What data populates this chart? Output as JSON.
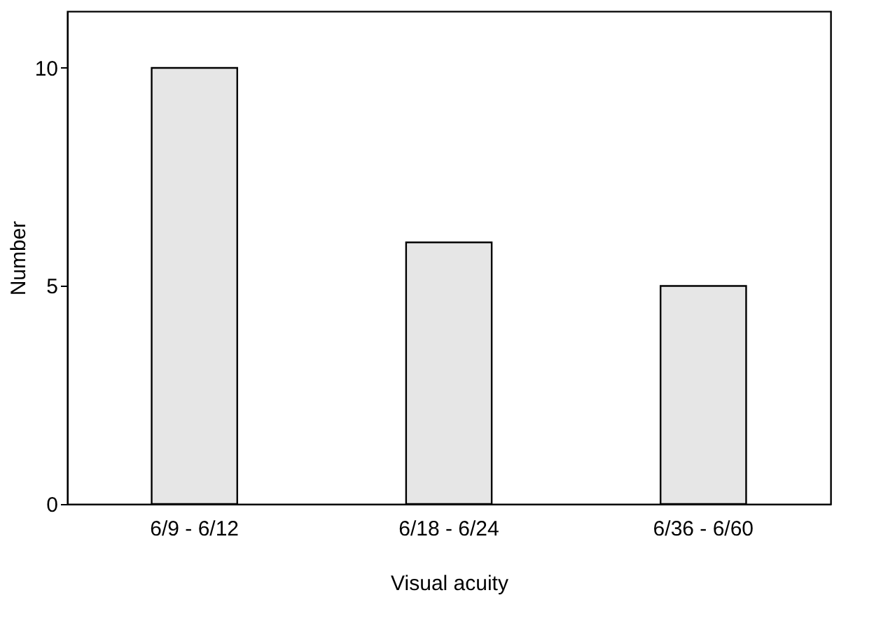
{
  "chart_data": {
    "type": "bar",
    "xlabel": "Visual acuity",
    "ylabel": "Number",
    "categories": [
      "6/9 - 6/12",
      "6/18 - 6/24",
      "6/36 - 6/60"
    ],
    "values": [
      10,
      6,
      5
    ],
    "color": "#e6e6e6",
    "ylim": [
      0,
      11.3
    ],
    "yticks": [
      0,
      5,
      10
    ],
    "grid": false,
    "legend": false
  }
}
